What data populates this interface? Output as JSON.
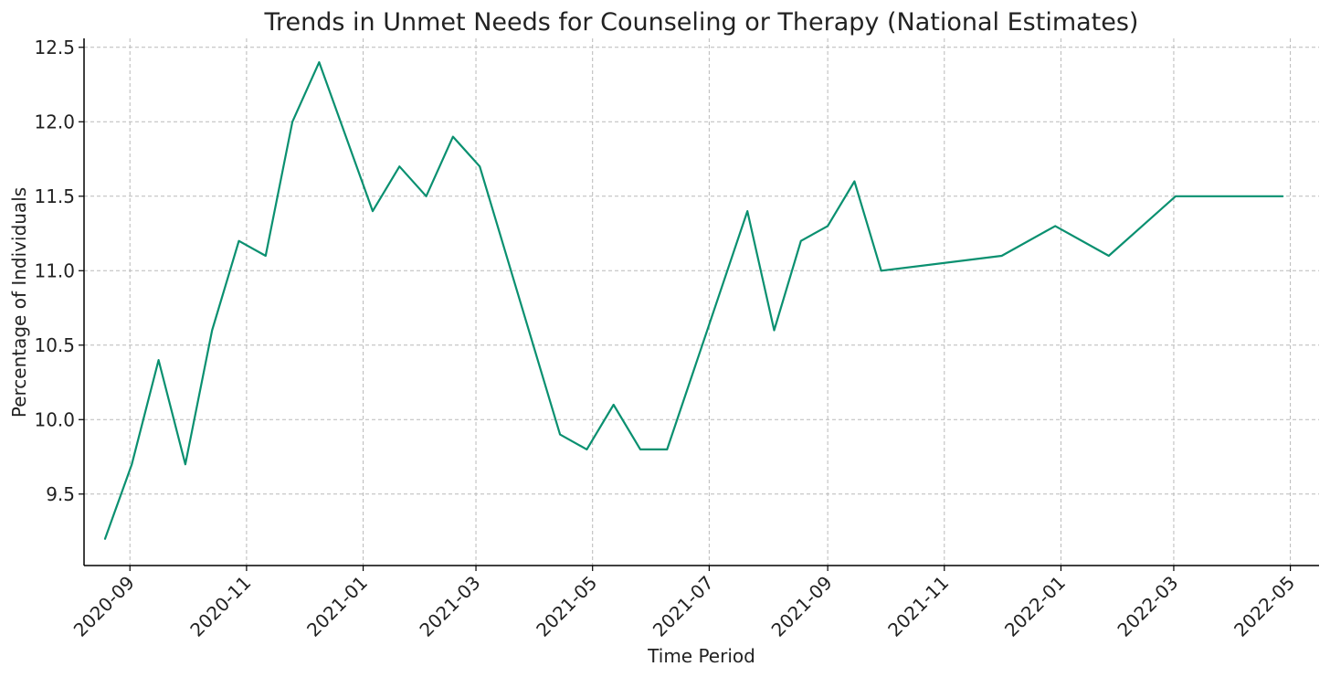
{
  "chart_data": {
    "type": "line",
    "title": "Trends in Unmet Needs for Counseling or Therapy (National Estimates)",
    "xlabel": "Time Period",
    "ylabel": "Percentage of Individuals",
    "x_tick_labels": [
      "2020-09",
      "2020-11",
      "2021-01",
      "2021-03",
      "2021-05",
      "2021-07",
      "2021-09",
      "2021-11",
      "2022-01",
      "2022-03",
      "2022-05"
    ],
    "y_tick_labels": [
      "9.5",
      "10.0",
      "10.5",
      "11.0",
      "11.5",
      "12.0",
      "12.5"
    ],
    "xlim": [
      "2020-08-08",
      "2022-05-16"
    ],
    "ylim": [
      9.02,
      12.56
    ],
    "grid": true,
    "color": "#0a9070",
    "series": [
      {
        "x": [
          "2020-08-19",
          "2020-09-02",
          "2020-09-16",
          "2020-09-30",
          "2020-10-14",
          "2020-10-28",
          "2020-11-11",
          "2020-11-25",
          "2020-12-09",
          "2021-01-06",
          "2021-01-20",
          "2021-02-03",
          "2021-02-17",
          "2021-03-03",
          "2021-04-14",
          "2021-04-28",
          "2021-05-12",
          "2021-05-26",
          "2021-06-09",
          "2021-07-21",
          "2021-08-04",
          "2021-08-18",
          "2021-09-01",
          "2021-09-15",
          "2021-09-29",
          "2021-12-01",
          "2021-12-29",
          "2022-01-26",
          "2022-03-02",
          "2022-03-16",
          "2022-04-27"
        ],
        "values": [
          9.2,
          9.7,
          10.4,
          9.7,
          10.6,
          11.2,
          11.1,
          12.0,
          12.4,
          11.4,
          11.7,
          11.5,
          11.9,
          11.7,
          9.9,
          9.8,
          10.1,
          9.8,
          9.8,
          11.4,
          10.6,
          11.2,
          11.3,
          11.6,
          11.0,
          11.1,
          11.3,
          11.1,
          11.5,
          11.5,
          11.5
        ]
      }
    ]
  }
}
